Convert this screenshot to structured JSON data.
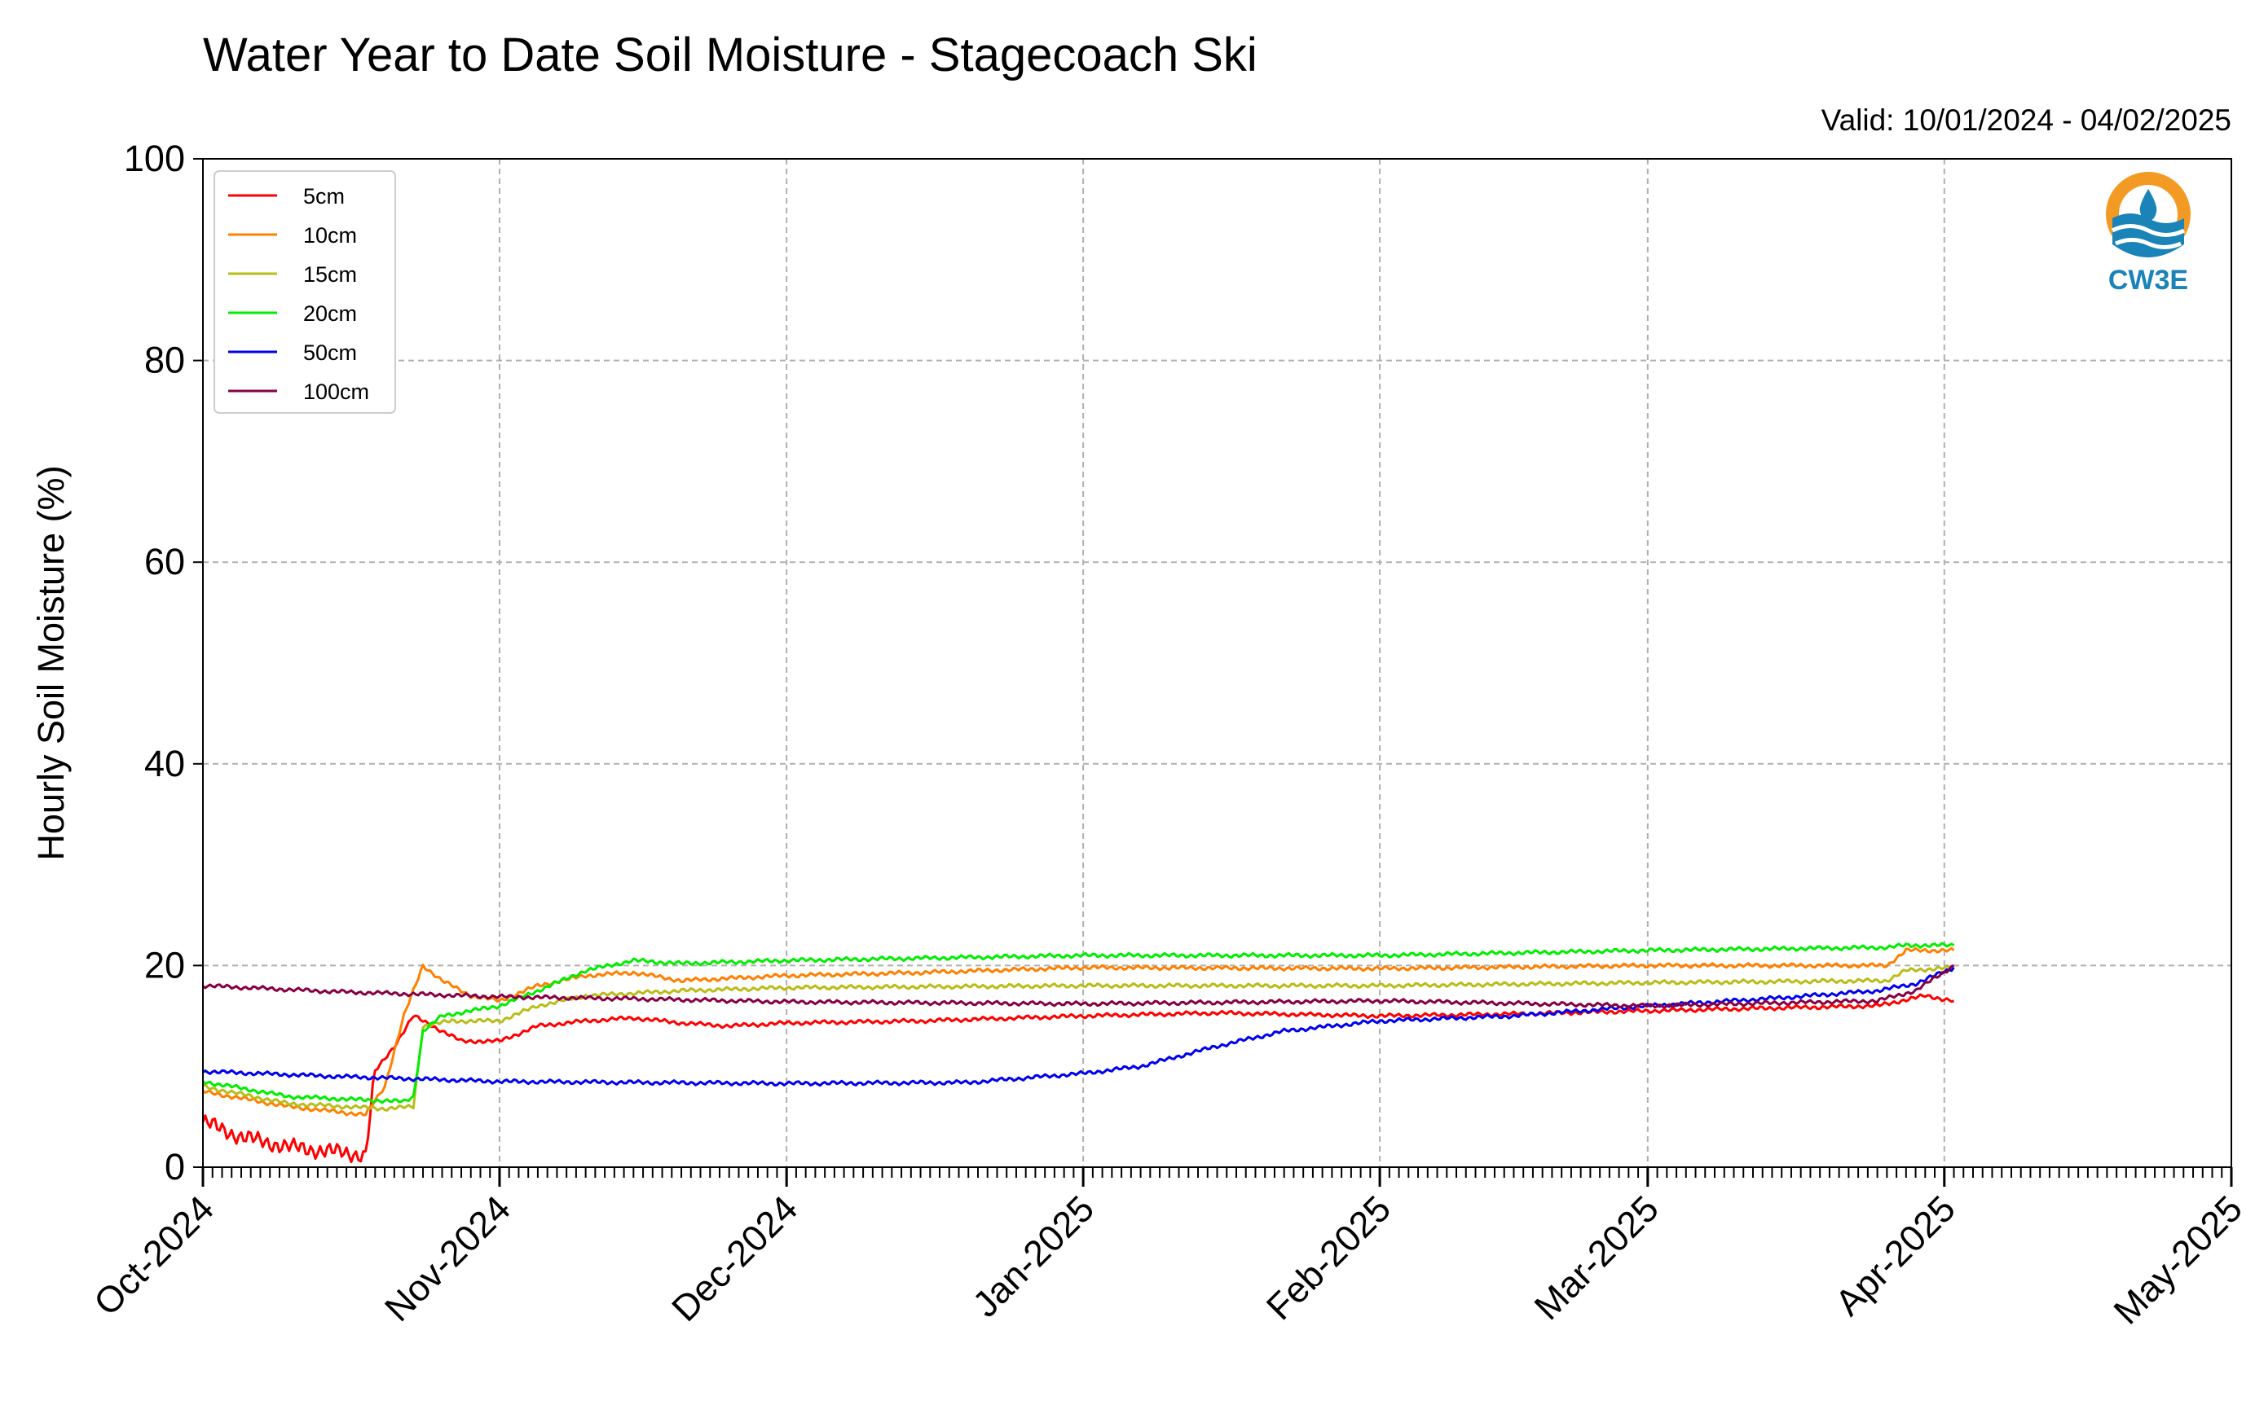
{
  "title": "Water Year to Date Soil Moisture - Stagecoach Ski",
  "valid_label": "Valid: 10/01/2024 - 04/02/2025",
  "logo_text": "CW3E",
  "chart_data": {
    "type": "line",
    "title": "Water Year to Date Soil Moisture - Stagecoach Ski",
    "subtitle": "Valid: 10/01/2024 - 04/02/2025",
    "xlabel": "",
    "ylabel": "Hourly Soil Moisture (%)",
    "xlim": [
      "2024-10-01",
      "2025-05-01"
    ],
    "ylim": [
      0,
      100
    ],
    "y_ticks": [
      0,
      20,
      40,
      60,
      80,
      100
    ],
    "x_ticks": [
      {
        "date": "2024-10-01",
        "label": "Oct-2024"
      },
      {
        "date": "2024-11-01",
        "label": "Nov-2024"
      },
      {
        "date": "2024-12-01",
        "label": "Dec-2024"
      },
      {
        "date": "2025-01-01",
        "label": "Jan-2025"
      },
      {
        "date": "2025-02-01",
        "label": "Feb-2025"
      },
      {
        "date": "2025-03-01",
        "label": "Mar-2025"
      },
      {
        "date": "2025-04-01",
        "label": "Apr-2025"
      },
      {
        "date": "2025-05-01",
        "label": "May-2025"
      }
    ],
    "grid": true,
    "legend_position": "top-left",
    "series": [
      {
        "name": "5cm",
        "color": "#ff0000",
        "points": [
          [
            "2024-10-01",
            4.5
          ],
          [
            "2024-10-05",
            3.0
          ],
          [
            "2024-10-10",
            2.0
          ],
          [
            "2024-10-15",
            1.5
          ],
          [
            "2024-10-18",
            1.2
          ],
          [
            "2024-10-19",
            9.5
          ],
          [
            "2024-10-21",
            12.0
          ],
          [
            "2024-10-23",
            15.0
          ],
          [
            "2024-10-25",
            14.0
          ],
          [
            "2024-10-28",
            12.5
          ],
          [
            "2024-11-01",
            12.5
          ],
          [
            "2024-11-05",
            14.0
          ],
          [
            "2024-11-10",
            14.5
          ],
          [
            "2024-11-15",
            14.8
          ],
          [
            "2024-11-20",
            14.3
          ],
          [
            "2024-11-25",
            14.0
          ],
          [
            "2024-12-01",
            14.3
          ],
          [
            "2024-12-15",
            14.5
          ],
          [
            "2025-01-01",
            15.0
          ],
          [
            "2025-01-15",
            15.3
          ],
          [
            "2025-02-01",
            15.0
          ],
          [
            "2025-02-15",
            15.2
          ],
          [
            "2025-03-01",
            15.5
          ],
          [
            "2025-03-15",
            15.8
          ],
          [
            "2025-03-25",
            16.0
          ],
          [
            "2025-03-30",
            17.0
          ],
          [
            "2025-04-02",
            16.5
          ]
        ]
      },
      {
        "name": "10cm",
        "color": "#ff8000",
        "points": [
          [
            "2024-10-01",
            7.5
          ],
          [
            "2024-10-10",
            6.0
          ],
          [
            "2024-10-18",
            5.2
          ],
          [
            "2024-10-20",
            8.0
          ],
          [
            "2024-10-22",
            15.0
          ],
          [
            "2024-10-24",
            20.0
          ],
          [
            "2024-10-26",
            18.5
          ],
          [
            "2024-10-29",
            17.0
          ],
          [
            "2024-11-01",
            16.5
          ],
          [
            "2024-11-05",
            18.0
          ],
          [
            "2024-11-10",
            19.0
          ],
          [
            "2024-11-15",
            19.3
          ],
          [
            "2024-11-20",
            18.5
          ],
          [
            "2024-12-01",
            19.0
          ],
          [
            "2024-12-15",
            19.3
          ],
          [
            "2025-01-01",
            19.8
          ],
          [
            "2025-02-01",
            19.7
          ],
          [
            "2025-03-01",
            20.0
          ],
          [
            "2025-03-26",
            20.0
          ],
          [
            "2025-03-28",
            21.5
          ],
          [
            "2025-04-02",
            21.5
          ]
        ]
      },
      {
        "name": "15cm",
        "color": "#b8bd18",
        "points": [
          [
            "2024-10-01",
            8.0
          ],
          [
            "2024-10-10",
            6.3
          ],
          [
            "2024-10-20",
            5.8
          ],
          [
            "2024-10-23",
            6.0
          ],
          [
            "2024-10-24",
            14.0
          ],
          [
            "2024-10-27",
            14.5
          ],
          [
            "2024-11-01",
            14.5
          ],
          [
            "2024-11-05",
            16.0
          ],
          [
            "2024-11-10",
            17.0
          ],
          [
            "2024-11-20",
            17.5
          ],
          [
            "2024-12-01",
            17.8
          ],
          [
            "2025-01-01",
            18.0
          ],
          [
            "2025-02-01",
            18.0
          ],
          [
            "2025-03-01",
            18.3
          ],
          [
            "2025-03-26",
            18.5
          ],
          [
            "2025-03-28",
            19.5
          ],
          [
            "2025-04-02",
            19.8
          ]
        ]
      },
      {
        "name": "20cm",
        "color": "#00ee00",
        "points": [
          [
            "2024-10-01",
            8.5
          ],
          [
            "2024-10-10",
            7.0
          ],
          [
            "2024-10-22",
            6.5
          ],
          [
            "2024-10-23",
            7.0
          ],
          [
            "2024-10-24",
            13.5
          ],
          [
            "2024-10-26",
            15.0
          ],
          [
            "2024-11-01",
            16.0
          ],
          [
            "2024-11-05",
            17.5
          ],
          [
            "2024-11-10",
            19.5
          ],
          [
            "2024-11-15",
            20.5
          ],
          [
            "2024-11-20",
            20.2
          ],
          [
            "2024-12-01",
            20.5
          ],
          [
            "2025-01-01",
            21.0
          ],
          [
            "2025-02-01",
            21.0
          ],
          [
            "2025-03-01",
            21.5
          ],
          [
            "2025-03-26",
            21.8
          ],
          [
            "2025-03-28",
            22.0
          ],
          [
            "2025-04-02",
            22.0
          ]
        ]
      },
      {
        "name": "50cm",
        "color": "#0000ee",
        "points": [
          [
            "2024-10-01",
            9.5
          ],
          [
            "2024-10-15",
            9.0
          ],
          [
            "2024-11-01",
            8.5
          ],
          [
            "2024-12-01",
            8.3
          ],
          [
            "2024-12-20",
            8.4
          ],
          [
            "2025-01-01",
            9.3
          ],
          [
            "2025-01-07",
            10.0
          ],
          [
            "2025-01-15",
            12.0
          ],
          [
            "2025-01-22",
            13.5
          ],
          [
            "2025-02-01",
            14.5
          ],
          [
            "2025-02-15",
            15.0
          ],
          [
            "2025-03-01",
            16.0
          ],
          [
            "2025-03-15",
            16.8
          ],
          [
            "2025-03-25",
            17.5
          ],
          [
            "2025-03-29",
            18.2
          ],
          [
            "2025-04-02",
            19.8
          ]
        ]
      },
      {
        "name": "100cm",
        "color": "#880044",
        "points": [
          [
            "2024-10-01",
            18.0
          ],
          [
            "2024-10-15",
            17.4
          ],
          [
            "2024-11-01",
            16.9
          ],
          [
            "2024-11-15",
            16.7
          ],
          [
            "2024-12-01",
            16.4
          ],
          [
            "2025-01-01",
            16.2
          ],
          [
            "2025-02-01",
            16.5
          ],
          [
            "2025-03-01",
            16.0
          ],
          [
            "2025-03-15",
            16.3
          ],
          [
            "2025-03-25",
            16.5
          ],
          [
            "2025-03-29",
            17.5
          ],
          [
            "2025-04-02",
            20.0
          ]
        ]
      }
    ]
  }
}
